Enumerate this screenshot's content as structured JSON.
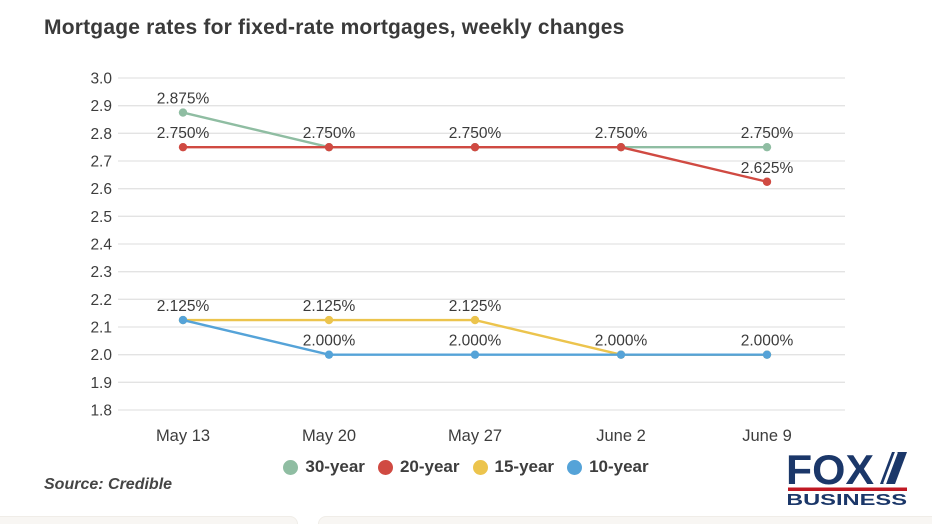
{
  "title": "Mortgage rates for fixed-rate mortgages, weekly changes",
  "source_credit": "Source: Credible",
  "logo": {
    "line1": "FOX",
    "line2": "BUSINESS",
    "navy": "#1b3769",
    "red": "#c01823"
  },
  "colors": {
    "gridline": "#e3e3e3",
    "axis_text": "#3d3d3d",
    "data_label_text": "#3b3b3b",
    "background": "#ffffff"
  },
  "chart_data": {
    "type": "line",
    "title": "Mortgage rates for fixed-rate mortgages, weekly changes",
    "categories": [
      "May 13",
      "May 20",
      "May 27",
      "June 2",
      "June 9"
    ],
    "series": [
      {
        "name": "30-year",
        "color": "#8fbda2",
        "values": [
          2.875,
          2.75,
          2.75,
          2.75,
          2.75
        ]
      },
      {
        "name": "20-year",
        "color": "#d04a42",
        "values": [
          2.75,
          2.75,
          2.75,
          2.75,
          2.625
        ]
      },
      {
        "name": "15-year",
        "color": "#ecc44d",
        "values": [
          2.125,
          2.125,
          2.125,
          2.0,
          2.0
        ]
      },
      {
        "name": "10-year",
        "color": "#55a3d8",
        "values": [
          2.125,
          2.0,
          2.0,
          2.0,
          2.0
        ]
      }
    ],
    "ylim": [
      1.8,
      3.0
    ],
    "yticks": [
      3.0,
      2.9,
      2.8,
      2.7,
      2.6,
      2.5,
      2.4,
      2.3,
      2.2,
      2.1,
      2.0,
      1.9,
      1.8
    ],
    "xlabel": "",
    "ylabel": "",
    "grid": true,
    "point_labels": true,
    "point_label_decimals": 3,
    "point_label_suffix": "%",
    "legend_position": "bottom-center"
  }
}
